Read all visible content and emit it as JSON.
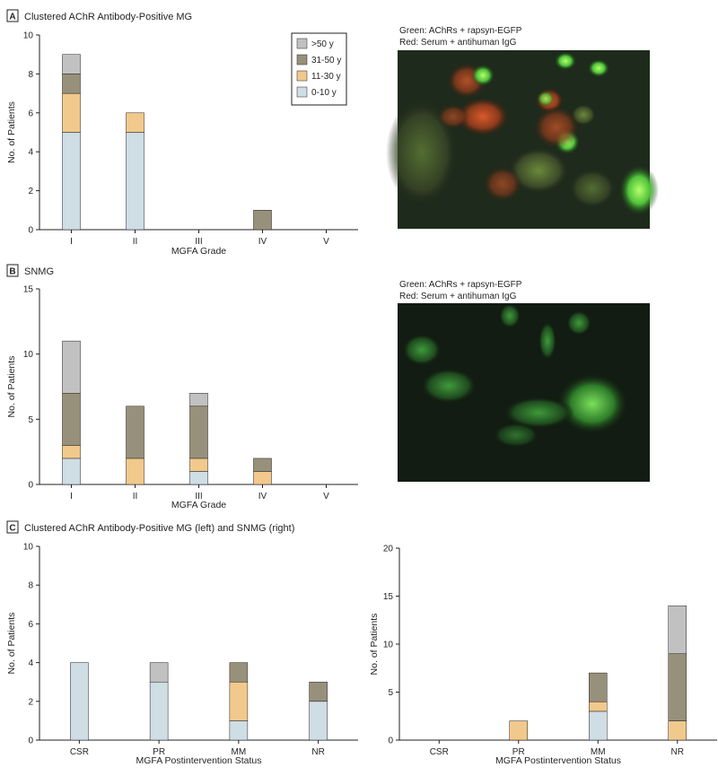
{
  "colors": {
    "0-10 y": "#cfdde5",
    "11-30 y": "#f2c98c",
    "31-50 y": "#97917c",
    ">50 y": "#c2c1c1"
  },
  "legend": [
    ">50 y",
    "31-50 y",
    "11-30 y",
    "0-10 y"
  ],
  "panels": {
    "a": {
      "letter": "A",
      "title": "Clustered AChR Antibody-Positive MG",
      "caption_line1": "Green: AChRs + rapsyn-EGFP",
      "caption_line2": "Red: Serum + antihuman IgG"
    },
    "b": {
      "letter": "B",
      "title": "SNMG",
      "caption_line1": "Green: AChRs + rapsyn-EGFP",
      "caption_line2": "Red: Serum + antihuman IgG"
    },
    "c": {
      "letter": "C",
      "title": "Clustered AChR Antibody-Positive MG (left) and SNMG (right)"
    }
  },
  "chart_data": [
    {
      "id": "A",
      "type": "bar",
      "stacked": true,
      "categories": [
        "I",
        "II",
        "III",
        "IV",
        "V"
      ],
      "xlabel": "MGFA Grade",
      "ylabel": "No. of Patients",
      "ylim": [
        0,
        10
      ],
      "yticks": [
        0,
        2,
        4,
        6,
        8,
        10
      ],
      "legend_position": "top-right",
      "series": [
        {
          "name": "0-10 y",
          "values": [
            5,
            5,
            0,
            0,
            0
          ]
        },
        {
          "name": "11-30 y",
          "values": [
            2,
            1,
            0,
            0,
            0
          ]
        },
        {
          "name": "31-50 y",
          "values": [
            1,
            0,
            0,
            1,
            0
          ]
        },
        {
          "name": ">50 y",
          "values": [
            1,
            0,
            0,
            0,
            0
          ]
        }
      ]
    },
    {
      "id": "B",
      "type": "bar",
      "stacked": true,
      "categories": [
        "I",
        "II",
        "III",
        "IV",
        "V"
      ],
      "xlabel": "MGFA Grade",
      "ylabel": "No. of Patients",
      "ylim": [
        0,
        15
      ],
      "yticks": [
        0,
        5,
        10,
        15
      ],
      "series": [
        {
          "name": "0-10 y",
          "values": [
            2,
            0,
            1,
            0,
            0
          ]
        },
        {
          "name": "11-30 y",
          "values": [
            1,
            2,
            1,
            1,
            0
          ]
        },
        {
          "name": "31-50 y",
          "values": [
            4,
            4,
            4,
            1,
            0
          ]
        },
        {
          "name": ">50 y",
          "values": [
            4,
            0,
            1,
            0,
            0
          ]
        }
      ]
    },
    {
      "id": "C-left",
      "type": "bar",
      "stacked": true,
      "categories": [
        "CSR",
        "PR",
        "MM",
        "NR"
      ],
      "xlabel": "MGFA Postintervention Status",
      "ylabel": "No. of Patients",
      "ylim": [
        0,
        10
      ],
      "yticks": [
        0,
        2,
        4,
        6,
        8,
        10
      ],
      "series": [
        {
          "name": "0-10 y",
          "values": [
            4,
            3,
            1,
            2
          ]
        },
        {
          "name": "11-30 y",
          "values": [
            0,
            0,
            2,
            0
          ]
        },
        {
          "name": "31-50 y",
          "values": [
            0,
            0,
            1,
            1
          ]
        },
        {
          "name": ">50 y",
          "values": [
            0,
            1,
            0,
            0
          ]
        }
      ]
    },
    {
      "id": "C-right",
      "type": "bar",
      "stacked": true,
      "categories": [
        "CSR",
        "PR",
        "MM",
        "NR"
      ],
      "xlabel": "MGFA Postintervention Status",
      "ylabel": "No. of Patients",
      "ylim": [
        0,
        20
      ],
      "yticks": [
        0,
        5,
        10,
        15,
        20
      ],
      "series": [
        {
          "name": "0-10 y",
          "values": [
            0,
            0,
            3,
            0
          ]
        },
        {
          "name": "11-30 y",
          "values": [
            0,
            2,
            1,
            2
          ]
        },
        {
          "name": "31-50 y",
          "values": [
            0,
            0,
            3,
            7
          ]
        },
        {
          "name": ">50 y",
          "values": [
            0,
            0,
            0,
            5
          ]
        }
      ]
    }
  ]
}
